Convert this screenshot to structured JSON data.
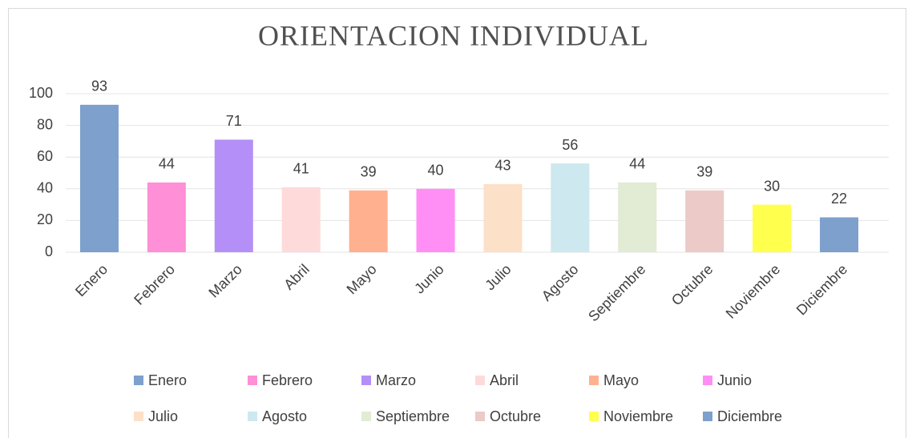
{
  "chart_data": {
    "type": "bar",
    "title": "ORIENTACION INDIVIDUAL",
    "categories": [
      "Enero",
      "Febrero",
      "Marzo",
      "Abril",
      "Mayo",
      "Junio",
      "Julio",
      "Agosto",
      "Septiembre",
      "Octubre",
      "Noviembre",
      "Diciembre"
    ],
    "values": [
      93,
      44,
      71,
      41,
      39,
      40,
      43,
      56,
      44,
      39,
      30,
      22
    ],
    "colors": [
      "#7da0cc",
      "#ff8fd6",
      "#b48ff7",
      "#ffdada",
      "#ffb18f",
      "#ff8ff5",
      "#fde0c8",
      "#cde8ee",
      "#e2ebd3",
      "#ebcac8",
      "#ffff4d",
      "#7da0cc"
    ],
    "ylim": [
      0,
      100
    ],
    "yticks": [
      0,
      20,
      40,
      60,
      80,
      100
    ],
    "grid": true,
    "legend": "bottom"
  }
}
